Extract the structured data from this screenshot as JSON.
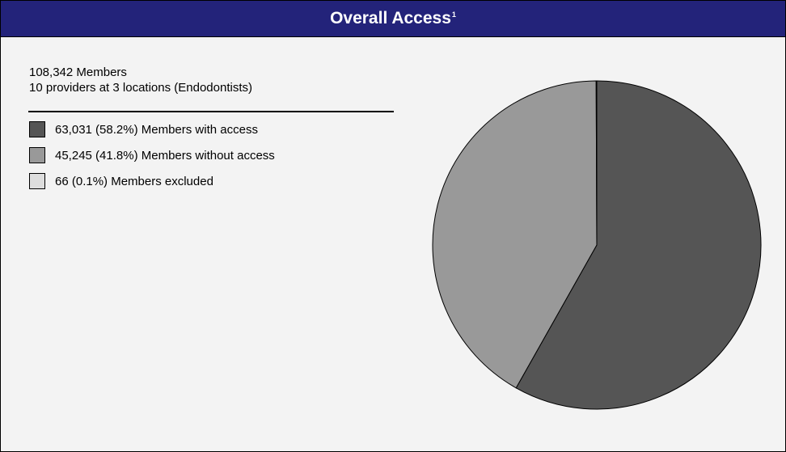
{
  "header": {
    "title": "Overall Access",
    "footnote_mark": "1"
  },
  "info": {
    "members_line": "108,342 Members",
    "providers_line": "10 providers at 3 locations (Endodontists)"
  },
  "colors": {
    "header_bg": "#23237a",
    "with_access": "#555555",
    "without_access": "#999999",
    "excluded": "#dddddd"
  },
  "legend": [
    {
      "label": "63,031 (58.2%) Members with access",
      "color": "#555555"
    },
    {
      "label": "45,245 (41.8%) Members without access",
      "color": "#999999"
    },
    {
      "label": "66 (0.1%) Members excluded",
      "color": "#dddddd"
    }
  ],
  "chart_data": {
    "type": "pie",
    "title": "Overall Access",
    "categories": [
      "Members with access",
      "Members without access",
      "Members excluded"
    ],
    "values": [
      63031,
      45245,
      66
    ],
    "percents": [
      58.2,
      41.8,
      0.1
    ],
    "colors": [
      "#555555",
      "#999999",
      "#dddddd"
    ],
    "legend_position": "left"
  }
}
